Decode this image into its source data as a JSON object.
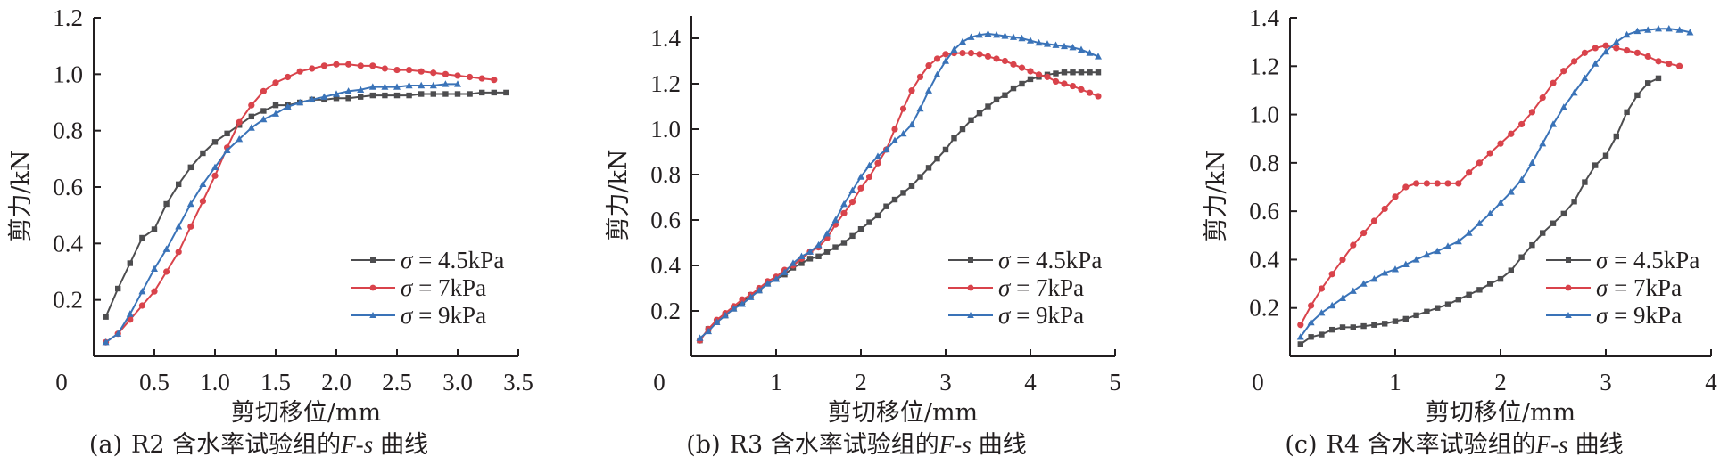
{
  "chart_data": [
    {
      "type": "line",
      "panel": "a",
      "caption_prefix": "(a)",
      "caption_text": "R2 含水率试验组的",
      "caption_italic": "F-s",
      "caption_suffix": "曲线",
      "xlabel": "剪切移位/mm",
      "ylabel": "剪力/kN",
      "xlim": [
        0,
        3.5
      ],
      "ylim": [
        0,
        1.2
      ],
      "xticks": [
        0,
        0.5,
        1.0,
        1.5,
        2.0,
        2.5,
        3.0,
        3.5
      ],
      "xtick_labels": [
        "0",
        "0.5",
        "1.0",
        "1.5",
        "2.0",
        "2.5",
        "3.0",
        "3.5"
      ],
      "yticks": [
        0.2,
        0.4,
        0.6,
        0.8,
        1.0,
        1.2
      ],
      "ytick_labels": [
        "0.2",
        "0.4",
        "0.6",
        "0.8",
        "1.0",
        "1.2"
      ],
      "legend_position": "bottom-right",
      "grid": false,
      "series": [
        {
          "name": "σ = 4.5kPa",
          "label_sym": "σ",
          "label_rest": " = 4.5kPa",
          "color": "#4d4d4f",
          "marker": "square",
          "x": [
            0.1,
            0.2,
            0.3,
            0.4,
            0.5,
            0.6,
            0.7,
            0.8,
            0.9,
            1.0,
            1.1,
            1.2,
            1.3,
            1.4,
            1.5,
            1.6,
            1.7,
            1.8,
            1.9,
            2.0,
            2.1,
            2.2,
            2.3,
            2.4,
            2.5,
            2.6,
            2.7,
            2.8,
            2.9,
            3.0,
            3.1,
            3.2,
            3.3,
            3.4
          ],
          "y": [
            0.14,
            0.24,
            0.33,
            0.42,
            0.45,
            0.54,
            0.61,
            0.67,
            0.72,
            0.76,
            0.79,
            0.82,
            0.85,
            0.87,
            0.89,
            0.89,
            0.9,
            0.91,
            0.91,
            0.915,
            0.915,
            0.92,
            0.925,
            0.925,
            0.925,
            0.925,
            0.93,
            0.93,
            0.93,
            0.93,
            0.93,
            0.935,
            0.935,
            0.935
          ]
        },
        {
          "name": "σ = 7kPa",
          "label_sym": "σ",
          "label_rest": " = 7kPa",
          "color": "#d9434b",
          "marker": "circle",
          "x": [
            0.1,
            0.2,
            0.3,
            0.4,
            0.5,
            0.6,
            0.7,
            0.8,
            0.9,
            1.0,
            1.1,
            1.2,
            1.3,
            1.4,
            1.5,
            1.6,
            1.7,
            1.8,
            1.9,
            2.0,
            2.1,
            2.2,
            2.3,
            2.4,
            2.5,
            2.6,
            2.7,
            2.8,
            2.9,
            3.0,
            3.1,
            3.2,
            3.3
          ],
          "y": [
            0.05,
            0.08,
            0.13,
            0.18,
            0.23,
            0.3,
            0.37,
            0.46,
            0.55,
            0.64,
            0.74,
            0.83,
            0.89,
            0.94,
            0.97,
            0.99,
            1.01,
            1.02,
            1.03,
            1.035,
            1.035,
            1.03,
            1.03,
            1.02,
            1.015,
            1.015,
            1.01,
            1.005,
            1.0,
            0.995,
            0.99,
            0.985,
            0.98
          ]
        },
        {
          "name": "σ = 9kPa",
          "label_sym": "σ",
          "label_rest": " = 9kPa",
          "color": "#3a73b8",
          "marker": "triangle",
          "x": [
            0.1,
            0.2,
            0.3,
            0.4,
            0.5,
            0.6,
            0.7,
            0.8,
            0.9,
            1.0,
            1.1,
            1.2,
            1.3,
            1.4,
            1.5,
            1.6,
            1.7,
            1.8,
            1.9,
            2.0,
            2.1,
            2.2,
            2.3,
            2.4,
            2.5,
            2.6,
            2.7,
            2.8,
            2.9,
            3.0
          ],
          "y": [
            0.05,
            0.08,
            0.15,
            0.23,
            0.31,
            0.38,
            0.46,
            0.54,
            0.61,
            0.67,
            0.73,
            0.77,
            0.81,
            0.84,
            0.86,
            0.885,
            0.9,
            0.91,
            0.92,
            0.93,
            0.94,
            0.945,
            0.955,
            0.955,
            0.955,
            0.96,
            0.96,
            0.96,
            0.965,
            0.965
          ]
        }
      ]
    },
    {
      "type": "line",
      "panel": "b",
      "caption_prefix": "(b)",
      "caption_text": "R3 含水率试验组的",
      "caption_italic": "F-s",
      "caption_suffix": "曲线",
      "xlabel": "剪切移位/mm",
      "ylabel": "剪力/kN",
      "xlim": [
        0,
        5
      ],
      "ylim": [
        0,
        1.5
      ],
      "xticks": [
        0,
        1,
        2,
        3,
        4,
        5
      ],
      "xtick_labels": [
        "0",
        "1",
        "2",
        "3",
        "4",
        "5"
      ],
      "yticks": [
        0.2,
        0.4,
        0.6,
        0.8,
        1.0,
        1.2,
        1.4
      ],
      "ytick_labels": [
        "0.2",
        "0.4",
        "0.6",
        "0.8",
        "1.0",
        "1.2",
        "1.4"
      ],
      "legend_position": "bottom-right",
      "grid": false,
      "series": [
        {
          "name": "σ = 4.5kPa",
          "label_sym": "σ",
          "label_rest": " = 4.5kPa",
          "color": "#4d4d4f",
          "marker": "square",
          "x": [
            0.1,
            0.2,
            0.3,
            0.4,
            0.5,
            0.6,
            0.7,
            0.8,
            0.9,
            1.0,
            1.1,
            1.2,
            1.3,
            1.4,
            1.5,
            1.6,
            1.7,
            1.8,
            1.9,
            2.0,
            2.1,
            2.2,
            2.3,
            2.4,
            2.5,
            2.6,
            2.7,
            2.8,
            2.9,
            3.0,
            3.1,
            3.2,
            3.3,
            3.4,
            3.5,
            3.6,
            3.7,
            3.8,
            3.9,
            4.0,
            4.1,
            4.2,
            4.3,
            4.4,
            4.5,
            4.6,
            4.7,
            4.8
          ],
          "y": [
            0.07,
            0.12,
            0.15,
            0.18,
            0.21,
            0.24,
            0.27,
            0.29,
            0.32,
            0.34,
            0.36,
            0.39,
            0.41,
            0.43,
            0.44,
            0.46,
            0.48,
            0.5,
            0.53,
            0.56,
            0.59,
            0.62,
            0.66,
            0.69,
            0.72,
            0.75,
            0.79,
            0.83,
            0.87,
            0.91,
            0.96,
            1.0,
            1.04,
            1.07,
            1.1,
            1.13,
            1.15,
            1.18,
            1.2,
            1.22,
            1.23,
            1.24,
            1.245,
            1.25,
            1.25,
            1.25,
            1.25,
            1.25
          ]
        },
        {
          "name": "σ = 7kPa",
          "label_sym": "σ",
          "label_rest": " = 7kPa",
          "color": "#d9434b",
          "marker": "circle",
          "x": [
            0.1,
            0.2,
            0.3,
            0.4,
            0.5,
            0.6,
            0.7,
            0.8,
            0.9,
            1.0,
            1.1,
            1.2,
            1.3,
            1.4,
            1.5,
            1.6,
            1.7,
            1.8,
            1.9,
            2.0,
            2.1,
            2.2,
            2.3,
            2.4,
            2.5,
            2.6,
            2.7,
            2.8,
            2.9,
            3.0,
            3.1,
            3.2,
            3.3,
            3.4,
            3.5,
            3.6,
            3.7,
            3.8,
            3.9,
            4.0,
            4.1,
            4.2,
            4.3,
            4.4,
            4.5,
            4.6,
            4.7,
            4.8
          ],
          "y": [
            0.07,
            0.12,
            0.16,
            0.19,
            0.22,
            0.25,
            0.27,
            0.3,
            0.33,
            0.35,
            0.38,
            0.4,
            0.43,
            0.46,
            0.48,
            0.52,
            0.58,
            0.63,
            0.68,
            0.74,
            0.79,
            0.85,
            0.91,
            1.0,
            1.09,
            1.17,
            1.23,
            1.28,
            1.31,
            1.33,
            1.335,
            1.335,
            1.335,
            1.33,
            1.32,
            1.31,
            1.3,
            1.285,
            1.27,
            1.255,
            1.24,
            1.23,
            1.21,
            1.2,
            1.19,
            1.175,
            1.16,
            1.145
          ]
        },
        {
          "name": "σ = 9kPa",
          "label_sym": "σ",
          "label_rest": " = 9kPa",
          "color": "#3a73b8",
          "marker": "triangle",
          "x": [
            0.1,
            0.2,
            0.3,
            0.4,
            0.5,
            0.6,
            0.7,
            0.8,
            0.9,
            1.0,
            1.1,
            1.2,
            1.3,
            1.4,
            1.5,
            1.6,
            1.7,
            1.8,
            1.9,
            2.0,
            2.1,
            2.2,
            2.3,
            2.4,
            2.5,
            2.6,
            2.7,
            2.8,
            2.9,
            3.0,
            3.1,
            3.2,
            3.3,
            3.4,
            3.5,
            3.6,
            3.7,
            3.8,
            3.9,
            4.0,
            4.1,
            4.2,
            4.3,
            4.4,
            4.5,
            4.6,
            4.7,
            4.8
          ],
          "y": [
            0.08,
            0.11,
            0.15,
            0.18,
            0.21,
            0.23,
            0.26,
            0.29,
            0.32,
            0.34,
            0.37,
            0.41,
            0.44,
            0.46,
            0.49,
            0.54,
            0.6,
            0.67,
            0.73,
            0.79,
            0.84,
            0.88,
            0.91,
            0.95,
            0.98,
            1.02,
            1.09,
            1.17,
            1.24,
            1.3,
            1.35,
            1.385,
            1.405,
            1.415,
            1.42,
            1.415,
            1.41,
            1.405,
            1.4,
            1.39,
            1.38,
            1.375,
            1.37,
            1.365,
            1.36,
            1.35,
            1.335,
            1.32
          ]
        }
      ]
    },
    {
      "type": "line",
      "panel": "c",
      "caption_prefix": "(c)",
      "caption_text": "R4 含水率试验组的",
      "caption_italic": "F-s",
      "caption_suffix": "曲线",
      "xlabel": "剪切移位/mm",
      "ylabel": "剪力/kN",
      "xlim": [
        0,
        4
      ],
      "ylim": [
        0,
        1.4
      ],
      "xticks": [
        0,
        1,
        2,
        3,
        4
      ],
      "xtick_labels": [
        "0",
        "1",
        "2",
        "3",
        "4"
      ],
      "yticks": [
        0.2,
        0.4,
        0.6,
        0.8,
        1.0,
        1.2,
        1.4
      ],
      "ytick_labels": [
        "0.2",
        "0.4",
        "0.6",
        "0.8",
        "1.0",
        "1.2",
        "1.4"
      ],
      "legend_position": "bottom-right",
      "grid": false,
      "series": [
        {
          "name": "σ = 4.5kPa",
          "label_sym": "σ",
          "label_rest": " = 4.5kPa",
          "color": "#4d4d4f",
          "marker": "square",
          "x": [
            0.1,
            0.2,
            0.3,
            0.4,
            0.5,
            0.6,
            0.7,
            0.8,
            0.9,
            1.0,
            1.1,
            1.2,
            1.3,
            1.4,
            1.5,
            1.6,
            1.7,
            1.8,
            1.9,
            2.0,
            2.1,
            2.2,
            2.3,
            2.4,
            2.5,
            2.6,
            2.7,
            2.8,
            2.9,
            3.0,
            3.1,
            3.2,
            3.3,
            3.4,
            3.5
          ],
          "y": [
            0.05,
            0.08,
            0.09,
            0.11,
            0.12,
            0.12,
            0.125,
            0.13,
            0.135,
            0.145,
            0.155,
            0.17,
            0.185,
            0.2,
            0.215,
            0.235,
            0.255,
            0.275,
            0.3,
            0.32,
            0.355,
            0.41,
            0.46,
            0.51,
            0.55,
            0.59,
            0.64,
            0.72,
            0.79,
            0.83,
            0.91,
            1.01,
            1.08,
            1.13,
            1.15
          ]
        },
        {
          "name": "σ = 7kPa",
          "label_sym": "σ",
          "label_rest": " = 7kPa",
          "color": "#d9434b",
          "marker": "circle",
          "x": [
            0.1,
            0.2,
            0.3,
            0.4,
            0.5,
            0.6,
            0.7,
            0.8,
            0.9,
            1.0,
            1.1,
            1.2,
            1.3,
            1.4,
            1.5,
            1.6,
            1.7,
            1.8,
            1.9,
            2.0,
            2.1,
            2.2,
            2.3,
            2.4,
            2.5,
            2.6,
            2.7,
            2.8,
            2.9,
            3.0,
            3.1,
            3.2,
            3.3,
            3.4,
            3.5,
            3.6,
            3.7
          ],
          "y": [
            0.13,
            0.21,
            0.28,
            0.34,
            0.4,
            0.46,
            0.51,
            0.56,
            0.61,
            0.66,
            0.7,
            0.715,
            0.715,
            0.715,
            0.715,
            0.715,
            0.76,
            0.8,
            0.84,
            0.88,
            0.92,
            0.96,
            1.01,
            1.07,
            1.13,
            1.18,
            1.22,
            1.255,
            1.275,
            1.285,
            1.275,
            1.265,
            1.255,
            1.24,
            1.22,
            1.21,
            1.2
          ]
        },
        {
          "name": "σ = 9kPa",
          "label_sym": "σ",
          "label_rest": " = 9kPa",
          "color": "#3a73b8",
          "marker": "triangle",
          "x": [
            0.1,
            0.2,
            0.3,
            0.4,
            0.5,
            0.6,
            0.7,
            0.8,
            0.9,
            1.0,
            1.1,
            1.2,
            1.3,
            1.4,
            1.5,
            1.6,
            1.7,
            1.8,
            1.9,
            2.0,
            2.1,
            2.2,
            2.3,
            2.4,
            2.5,
            2.6,
            2.7,
            2.8,
            2.9,
            3.0,
            3.1,
            3.2,
            3.3,
            3.4,
            3.5,
            3.6,
            3.7,
            3.8
          ],
          "y": [
            0.08,
            0.14,
            0.18,
            0.21,
            0.24,
            0.27,
            0.3,
            0.32,
            0.345,
            0.36,
            0.38,
            0.4,
            0.42,
            0.435,
            0.455,
            0.475,
            0.51,
            0.55,
            0.59,
            0.635,
            0.68,
            0.73,
            0.8,
            0.88,
            0.96,
            1.03,
            1.09,
            1.15,
            1.21,
            1.26,
            1.3,
            1.33,
            1.345,
            1.35,
            1.355,
            1.355,
            1.35,
            1.34
          ]
        }
      ]
    }
  ]
}
